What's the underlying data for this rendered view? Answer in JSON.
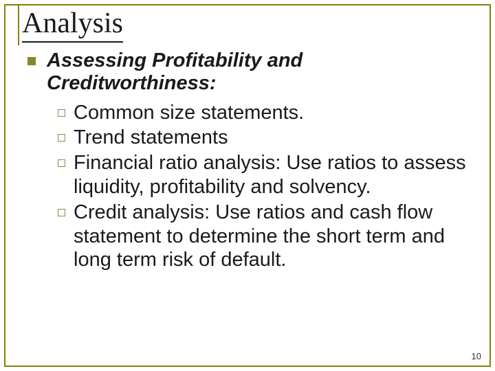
{
  "title": "Analysis",
  "heading": "Assessing Profitability and Creditworthiness:",
  "items": {
    "i0": "Common size statements.",
    "i1": "Trend statements",
    "i2": "Financial ratio analysis: Use ratios to assess liquidity, profitability and solvency.",
    "i3": "Credit analysis: Use ratios and cash flow statement to determine the short term and long term risk of default."
  },
  "page_number": "10",
  "colors": {
    "border": "#848200",
    "bullet_fill": "#878630",
    "bullet_open": "#8b8b50",
    "text": "#1a1a1a",
    "background": "#ffffff"
  }
}
